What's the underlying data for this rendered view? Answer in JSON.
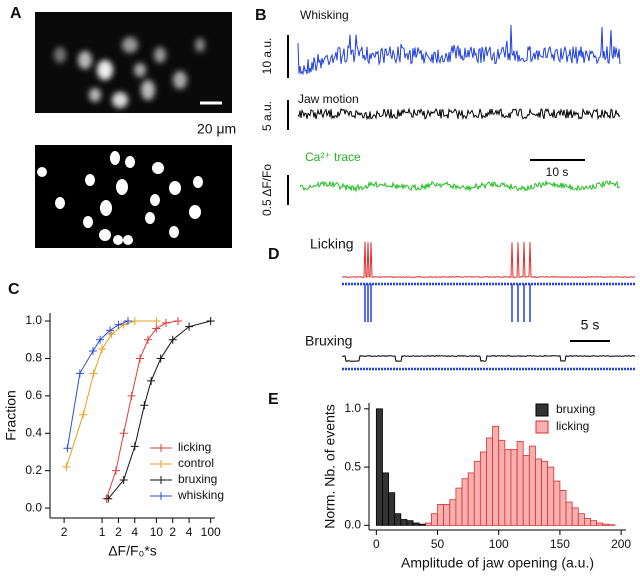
{
  "figure": {
    "panel_labels": [
      "A",
      "B",
      "C",
      "D",
      "E"
    ],
    "scale_text_a": "20 μm",
    "traces_b": {
      "whisking": "Whisking",
      "jaw": "Jaw motion",
      "calcium": "Ca²⁺ trace",
      "bar_whisk": "10 a.u.",
      "bar_jaw": "5 a.u.",
      "bar_ca": "0.5 ΔF/Fo",
      "bar_time": "10  s"
    },
    "traces_d": {
      "licking": "Licking",
      "bruxing": "Bruxing",
      "bar_time": "5 s"
    }
  },
  "chart_data": [
    {
      "type": "line",
      "xlabel": "ΔF/F₀*s",
      "ylabel": "Fraction",
      "log_x": true,
      "xlim": [
        0.11,
        120
      ],
      "ylim": [
        -0.053,
        1.043
      ],
      "xticks": [
        {
          "value": 0.2,
          "label": "2"
        },
        1,
        2,
        4,
        10,
        {
          "value": 20,
          "label": "2"
        },
        {
          "value": 40,
          "label": "4"
        },
        100
      ],
      "yticks": [
        {
          "value": 0,
          "label": "0.0"
        },
        0.2,
        0.4,
        0.6,
        0.8,
        {
          "value": 1,
          "label": "1.0"
        }
      ],
      "legend": "lower right",
      "series": [
        {
          "name": "licking",
          "color": "#e03c3c",
          "x": [
            1.2,
            1.8,
            2.5,
            3.5,
            5,
            7,
            10,
            15,
            25
          ],
          "values": [
            0.05,
            0.2,
            0.4,
            0.6,
            0.8,
            0.9,
            0.96,
            0.99,
            1.0
          ]
        },
        {
          "name": "control",
          "color": "#e8a020",
          "x": [
            0.22,
            0.45,
            0.7,
            1,
            1.5,
            2.5,
            4,
            10
          ],
          "values": [
            0.22,
            0.5,
            0.72,
            0.85,
            0.93,
            0.98,
            1.0,
            1.0
          ]
        },
        {
          "name": "bruxing",
          "color": "#111111",
          "x": [
            1.3,
            2.5,
            4,
            6,
            8,
            12,
            20,
            40,
            100
          ],
          "values": [
            0.05,
            0.15,
            0.33,
            0.55,
            0.68,
            0.8,
            0.9,
            0.97,
            1.0
          ]
        },
        {
          "name": "whisking",
          "color": "#2f4fd8",
          "x": [
            0.23,
            0.39,
            0.68,
            0.92,
            1.4,
            2,
            3
          ],
          "values": [
            0.32,
            0.72,
            0.84,
            0.9,
            0.95,
            0.98,
            1.0
          ]
        }
      ]
    },
    {
      "type": "histogram",
      "xlabel": "Amplitude of jaw opening (a.u.)",
      "ylabel": "Norm. Nb. of events",
      "xlim": [
        -6,
        204
      ],
      "ylim": [
        -0.04,
        1.05
      ],
      "xticks": [
        0,
        50,
        100,
        150,
        200
      ],
      "yticks": [
        {
          "value": 0,
          "label": "0.0"
        },
        0.5,
        {
          "value": 1,
          "label": "1.0"
        }
      ],
      "legend": "upper right",
      "bins": [
        0,
        5,
        10,
        15,
        20,
        25,
        30,
        35,
        40,
        45,
        50,
        55,
        60,
        65,
        70,
        75,
        80,
        85,
        90,
        95,
        100,
        105,
        110,
        115,
        120,
        125,
        130,
        135,
        140,
        145,
        150,
        155,
        160,
        165,
        170,
        175,
        180,
        185,
        190,
        195,
        200
      ],
      "series": [
        {
          "name": "licking",
          "color": "#f7b0b0",
          "edge": "#d83030",
          "values": [
            0,
            0,
            0,
            0,
            0,
            0,
            0,
            0,
            0.02,
            0.1,
            0.18,
            0.18,
            0.22,
            0.32,
            0.4,
            0.45,
            0.55,
            0.63,
            0.75,
            0.85,
            0.73,
            0.65,
            0.65,
            0.72,
            0.6,
            0.68,
            0.57,
            0.55,
            0.5,
            0.38,
            0.3,
            0.2,
            0.15,
            0.1,
            0.06,
            0.04,
            0.02,
            0.01,
            0.005,
            0
          ]
        },
        {
          "name": "bruxing",
          "color": "#333333",
          "edge": "#000000",
          "values": [
            1.0,
            0.45,
            0.28,
            0.1,
            0.05,
            0.04,
            0.02,
            0.01,
            0,
            0,
            0,
            0,
            0,
            0,
            0,
            0,
            0,
            0,
            0,
            0,
            0,
            0,
            0,
            0,
            0,
            0,
            0,
            0,
            0,
            0,
            0,
            0,
            0,
            0,
            0,
            0,
            0,
            0,
            0,
            0
          ]
        }
      ]
    }
  ]
}
